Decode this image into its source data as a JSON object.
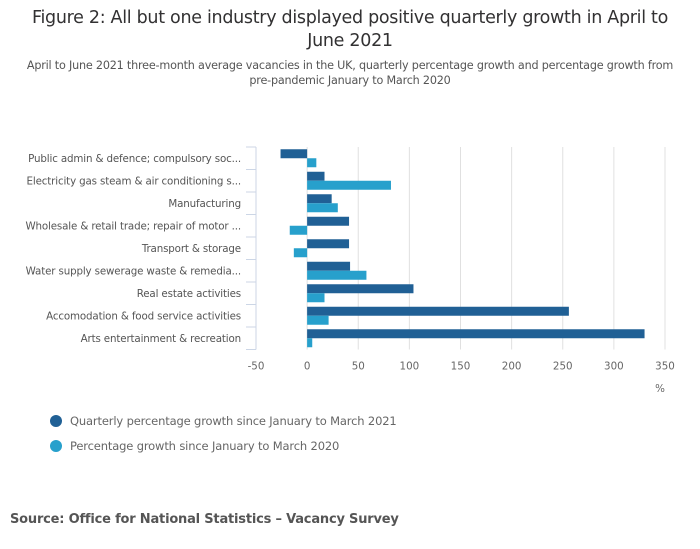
{
  "chart_data": {
    "type": "bar",
    "orientation": "horizontal",
    "title": "Figure 2: All but one industry displayed positive quarterly growth in April to June 2021",
    "subtitle": "April to June 2021 three-month average vacancies in the UK, quarterly percentage growth and percentage growth from pre-pandemic January to March 2020",
    "categories": [
      "Public admin & defence; compulsory soc...",
      "Electricity gas steam & air conditioning s...",
      "Manufacturing",
      "Wholesale & retail trade; repair of motor ...",
      "Transport & storage",
      "Water supply sewerage waste & remedia...",
      "Real estate activities",
      "Accomodation & food service activities",
      "Arts entertainment & recreation"
    ],
    "series": [
      {
        "name": "Quarterly percentage growth since January to March 2021",
        "color": "#206095",
        "values": [
          -26,
          17,
          24,
          41,
          41,
          42,
          104,
          256,
          330
        ]
      },
      {
        "name": "Percentage growth since January to March 2020",
        "color": "#27a0cc",
        "values": [
          9,
          82,
          30,
          -17,
          -13,
          58,
          17,
          21,
          5
        ]
      }
    ],
    "xlabel": "%",
    "ylabel": "",
    "xlim": [
      -50,
      350
    ],
    "xticks": [
      "-50",
      "0",
      "50",
      "100",
      "150",
      "200",
      "250",
      "300",
      "350"
    ],
    "grid": true,
    "legend_position": "bottom-left"
  },
  "source": "Source: Office for National Statistics – Vacancy Survey"
}
